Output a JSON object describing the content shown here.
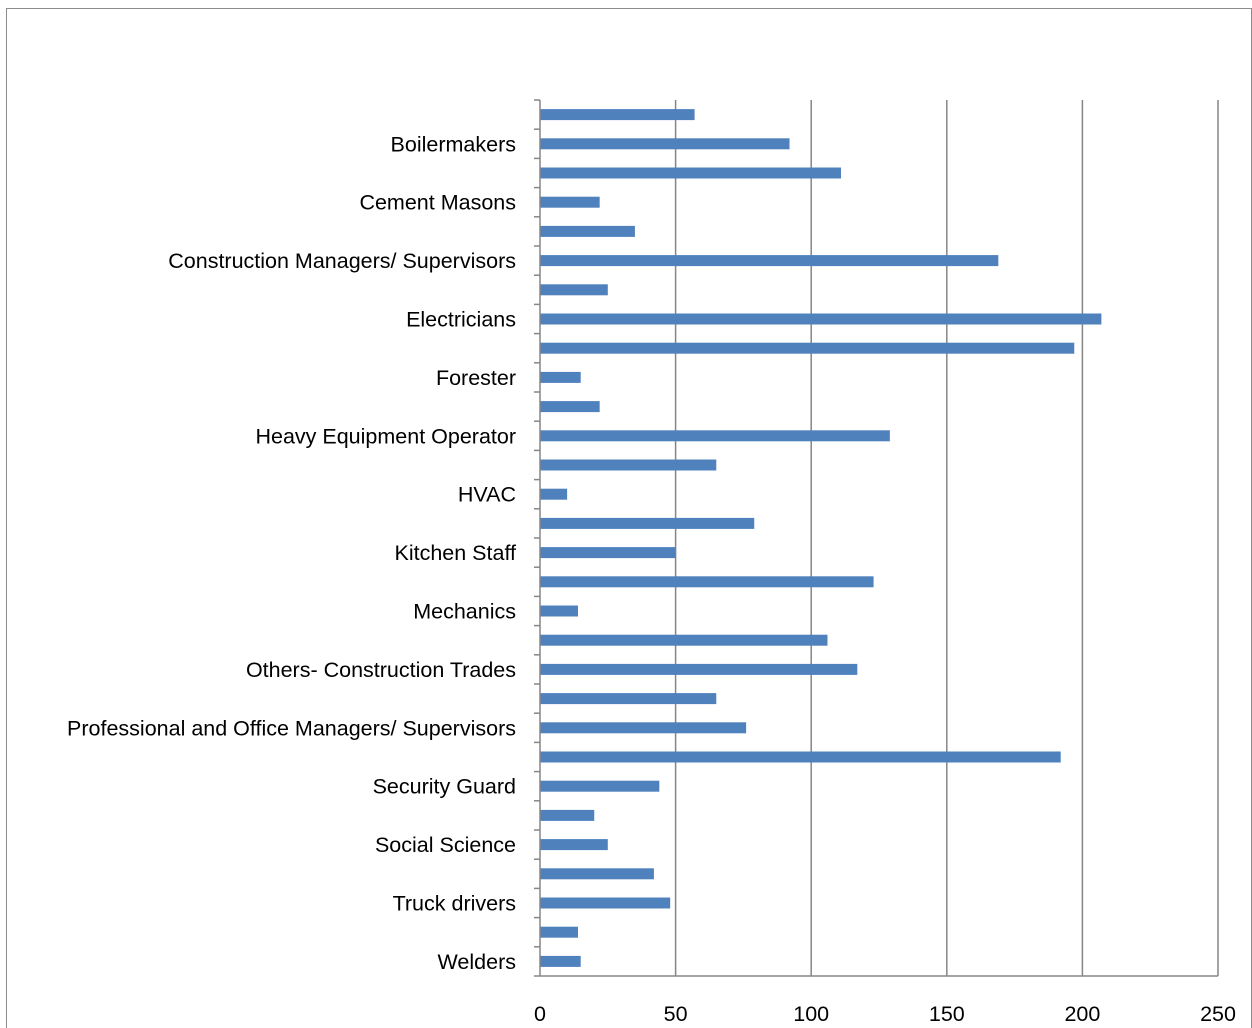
{
  "chart_data": {
    "type": "bar",
    "orientation": "horizontal",
    "categories": [
      "",
      "Boilermakers",
      "",
      "Cement Masons",
      "",
      "Construction Managers/ Supervisors",
      "",
      "Electricians",
      "",
      "Forester",
      "",
      "Heavy Equipment Operator",
      "",
      "HVAC",
      "",
      "Kitchen Staff",
      "",
      "Mechanics",
      "",
      "Others- Construction Trades",
      "",
      "Professional and Office Managers/ Supervisors",
      "",
      "Security Guard",
      "",
      "Social Science",
      "",
      "Truck drivers",
      "",
      "Welders"
    ],
    "values": [
      57,
      92,
      111,
      22,
      35,
      169,
      25,
      207,
      197,
      15,
      22,
      129,
      65,
      10,
      79,
      50,
      123,
      14,
      106,
      117,
      65,
      76,
      192,
      44,
      20,
      25,
      42,
      48,
      14,
      15
    ],
    "xlim": [
      0,
      250
    ],
    "xticks": [
      "0",
      "50",
      "100",
      "150",
      "200",
      "250"
    ],
    "grid": "vertical",
    "legend": "none",
    "title": "",
    "xlabel": "",
    "ylabel": "",
    "bar_color": "#4f81bd",
    "grid_color": "#868686"
  }
}
